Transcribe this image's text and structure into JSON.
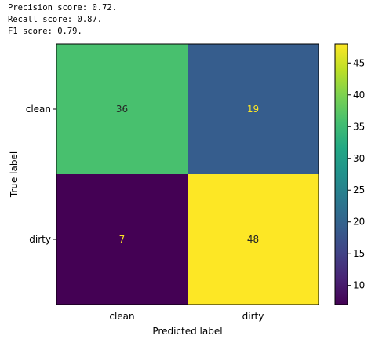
{
  "scores": [
    "Precision score: 0.72.",
    "Recall score: 0.87.",
    "F1 score: 0.79."
  ],
  "chart_data": {
    "type": "heatmap",
    "title": "",
    "xlabel": "Predicted label",
    "ylabel": "True label",
    "x_categories": [
      "clean",
      "dirty"
    ],
    "y_categories": [
      "clean",
      "dirty"
    ],
    "values": [
      [
        36,
        19
      ],
      [
        7,
        48
      ]
    ],
    "colorbar": {
      "min": 7,
      "max": 48,
      "ticks": [
        10,
        15,
        20,
        25,
        30,
        35,
        40,
        45
      ],
      "colormap": "viridis"
    },
    "text_colors": {
      "on_light": "#262626",
      "on_dark": "#fde725"
    },
    "grid": false
  }
}
